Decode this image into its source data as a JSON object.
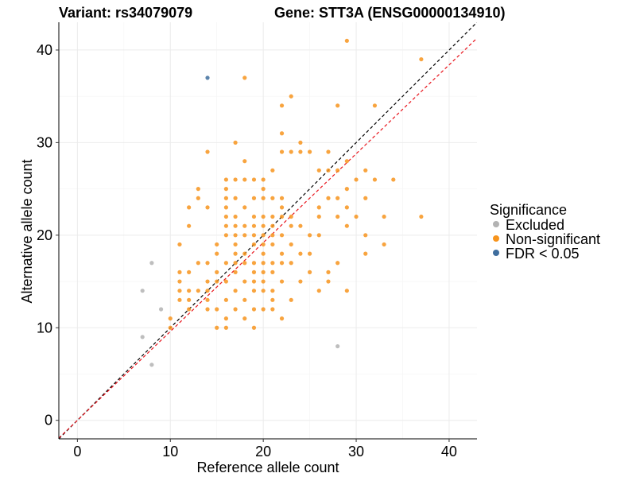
{
  "chart_data": {
    "type": "scatter",
    "title_left": "Variant: rs34079079",
    "title_right": "Gene: STT3A (ENSG00000134910)",
    "xlabel": "Reference allele count",
    "ylabel": "Alternative allele count",
    "xlim": [
      -2,
      43
    ],
    "ylim": [
      -2,
      43
    ],
    "x_ticks": [
      0,
      10,
      20,
      30,
      40
    ],
    "y_ticks": [
      0,
      10,
      20,
      30,
      40
    ],
    "grid": true,
    "legend": {
      "title": "Significance",
      "position": "right",
      "entries": [
        {
          "label": "Excluded",
          "color": "#b3b3b3"
        },
        {
          "label": "Non-significant",
          "color": "#f7941d"
        },
        {
          "label": "FDR < 0.05",
          "color": "#3f6e9e"
        }
      ]
    },
    "reference_lines": [
      {
        "type": "identity",
        "slope": 1,
        "intercept": 0,
        "color": "#000000",
        "dash": true
      },
      {
        "type": "fit",
        "slope": 0.96,
        "intercept": 0,
        "color": "#e8141c",
        "dash": true
      }
    ],
    "series": [
      {
        "name": "Excluded",
        "color": "#b3b3b3",
        "points": [
          [
            7,
            14
          ],
          [
            7,
            9
          ],
          [
            8,
            17
          ],
          [
            8,
            6
          ],
          [
            9,
            12
          ],
          [
            28,
            8
          ]
        ]
      },
      {
        "name": "FDR < 0.05",
        "color": "#3f6e9e",
        "points": [
          [
            14,
            37
          ]
        ]
      },
      {
        "name": "Non-significant",
        "color": "#f7941d",
        "points": [
          [
            29,
            41
          ],
          [
            37,
            39
          ],
          [
            18,
            37
          ],
          [
            23,
            35
          ],
          [
            22,
            34
          ],
          [
            28,
            34
          ],
          [
            32,
            34
          ],
          [
            22,
            31
          ],
          [
            17,
            30
          ],
          [
            24,
            30
          ],
          [
            14,
            29
          ],
          [
            22,
            29
          ],
          [
            24,
            29
          ],
          [
            27,
            29
          ],
          [
            23,
            29
          ],
          [
            25,
            29
          ],
          [
            29,
            28
          ],
          [
            18,
            28
          ],
          [
            21,
            27
          ],
          [
            27,
            27
          ],
          [
            28,
            27
          ],
          [
            31,
            27
          ],
          [
            26,
            27
          ],
          [
            19,
            26
          ],
          [
            20,
            26
          ],
          [
            34,
            26
          ],
          [
            30,
            26
          ],
          [
            32,
            26
          ],
          [
            17,
            26
          ],
          [
            18,
            26
          ],
          [
            16,
            26
          ],
          [
            13,
            25
          ],
          [
            16,
            25
          ],
          [
            20,
            25
          ],
          [
            29,
            25
          ],
          [
            16,
            24
          ],
          [
            17,
            24
          ],
          [
            19,
            24
          ],
          [
            20,
            24
          ],
          [
            21,
            24
          ],
          [
            22,
            24
          ],
          [
            27,
            24
          ],
          [
            28,
            24
          ],
          [
            31,
            24
          ],
          [
            13,
            24
          ],
          [
            12,
            23
          ],
          [
            14,
            23
          ],
          [
            16,
            23
          ],
          [
            18,
            23
          ],
          [
            22,
            23
          ],
          [
            26,
            23
          ],
          [
            29,
            23
          ],
          [
            19,
            22
          ],
          [
            20,
            22
          ],
          [
            21,
            22
          ],
          [
            22,
            22
          ],
          [
            23,
            22
          ],
          [
            17,
            22
          ],
          [
            16,
            22
          ],
          [
            30,
            22
          ],
          [
            33,
            22
          ],
          [
            37,
            22
          ],
          [
            26,
            22
          ],
          [
            28,
            22
          ],
          [
            12,
            21
          ],
          [
            16,
            21
          ],
          [
            19,
            21
          ],
          [
            21,
            21
          ],
          [
            23,
            21
          ],
          [
            24,
            21
          ],
          [
            29,
            21
          ],
          [
            17,
            21
          ],
          [
            18,
            21
          ],
          [
            20,
            21
          ],
          [
            16,
            20
          ],
          [
            17,
            20
          ],
          [
            18,
            20
          ],
          [
            19,
            20
          ],
          [
            20,
            20
          ],
          [
            21,
            20
          ],
          [
            22,
            20
          ],
          [
            31,
            20
          ],
          [
            25,
            20
          ],
          [
            26,
            20
          ],
          [
            11,
            19
          ],
          [
            15,
            19
          ],
          [
            17,
            19
          ],
          [
            19,
            19
          ],
          [
            20,
            19
          ],
          [
            21,
            19
          ],
          [
            23,
            19
          ],
          [
            33,
            19
          ],
          [
            15,
            18
          ],
          [
            18,
            18
          ],
          [
            20,
            18
          ],
          [
            22,
            18
          ],
          [
            24,
            18
          ],
          [
            25,
            18
          ],
          [
            31,
            18
          ],
          [
            17,
            18
          ],
          [
            13,
            17
          ],
          [
            14,
            17
          ],
          [
            16,
            17
          ],
          [
            17,
            17
          ],
          [
            20,
            17
          ],
          [
            21,
            17
          ],
          [
            22,
            17
          ],
          [
            23,
            17
          ],
          [
            28,
            17
          ],
          [
            18,
            17
          ],
          [
            19,
            17
          ],
          [
            11,
            16
          ],
          [
            12,
            16
          ],
          [
            15,
            16
          ],
          [
            17,
            16
          ],
          [
            19,
            16
          ],
          [
            21,
            16
          ],
          [
            25,
            16
          ],
          [
            27,
            16
          ],
          [
            20,
            16
          ],
          [
            11,
            15
          ],
          [
            14,
            15
          ],
          [
            16,
            15
          ],
          [
            18,
            15
          ],
          [
            20,
            15
          ],
          [
            22,
            15
          ],
          [
            24,
            15
          ],
          [
            27,
            15
          ],
          [
            15,
            15
          ],
          [
            19,
            15
          ],
          [
            11,
            14
          ],
          [
            12,
            14
          ],
          [
            13,
            14
          ],
          [
            14,
            14
          ],
          [
            17,
            14
          ],
          [
            20,
            14
          ],
          [
            26,
            14
          ],
          [
            29,
            14
          ],
          [
            19,
            14
          ],
          [
            21,
            14
          ],
          [
            11,
            13
          ],
          [
            12,
            13
          ],
          [
            14,
            13
          ],
          [
            16,
            13
          ],
          [
            18,
            13
          ],
          [
            21,
            13
          ],
          [
            23,
            13
          ],
          [
            12,
            12
          ],
          [
            14,
            12
          ],
          [
            15,
            12
          ],
          [
            17,
            12
          ],
          [
            19,
            12
          ],
          [
            20,
            12
          ],
          [
            21,
            12
          ],
          [
            10,
            11
          ],
          [
            16,
            11
          ],
          [
            18,
            11
          ],
          [
            22,
            11
          ],
          [
            10,
            10
          ],
          [
            15,
            10
          ],
          [
            16,
            10
          ],
          [
            19,
            10
          ]
        ]
      }
    ]
  }
}
